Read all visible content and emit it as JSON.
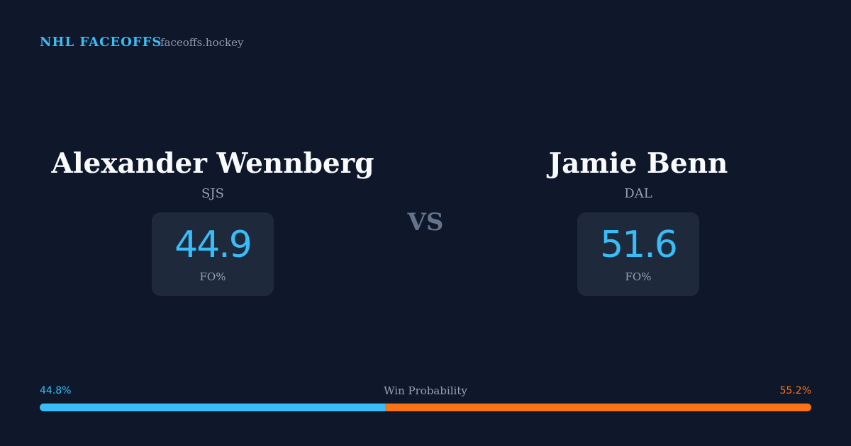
{
  "header": {
    "brand": "NHL FACEOFFS",
    "site": "faceoffs.hockey"
  },
  "players": [
    {
      "name": "Alexander Wennberg",
      "team": "SJS",
      "stat": 44.9,
      "stat_label": "FO%"
    },
    {
      "name": "Jamie Benn",
      "team": "DAL",
      "stat": 51.6,
      "stat_label": "FO%"
    }
  ],
  "vs": "VS",
  "win_probability": {
    "label": "Win Probability",
    "values": [
      44.8,
      55.2
    ],
    "value_labels": [
      "44.8%",
      "55.2%"
    ],
    "colors": [
      "#38bdf8",
      "#f97316"
    ]
  }
}
